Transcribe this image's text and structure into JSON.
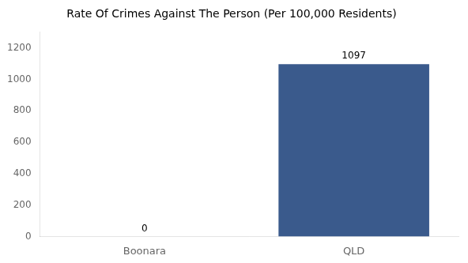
{
  "chart_data": {
    "type": "bar",
    "title": "Rate Of Crimes Against The Person (Per 100,000 Residents)",
    "categories": [
      "Boonara",
      "QLD"
    ],
    "values": [
      0,
      1097
    ],
    "color": "#3a5a8c",
    "ylim": [
      0,
      1300
    ],
    "yticks": [
      0,
      200,
      400,
      600,
      800,
      1000,
      1200
    ],
    "grid": false,
    "data_labels": true
  }
}
